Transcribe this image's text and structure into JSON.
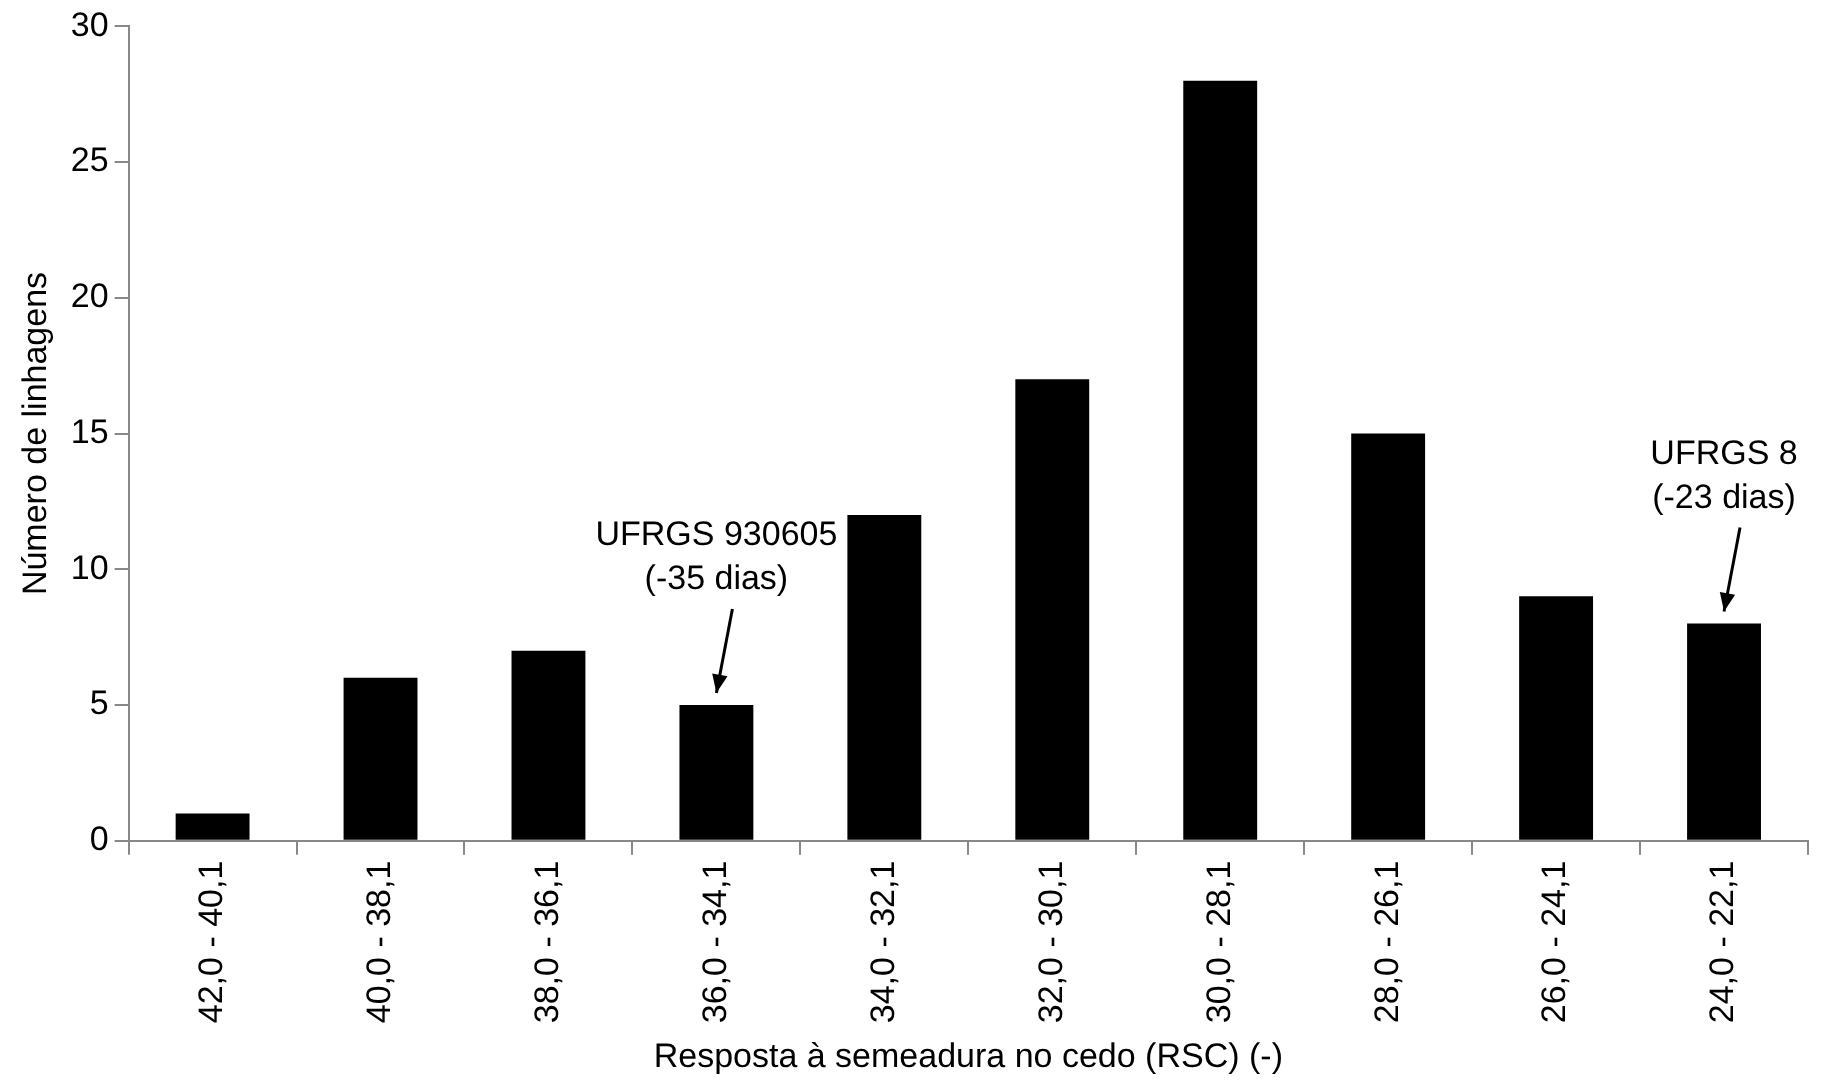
{
  "chart_data": {
    "type": "bar",
    "xlabel": "Resposta à semeadura no cedo (RSC) (-)",
    "ylabel": "Número de linhagens",
    "categories": [
      "42,0 - 40,1",
      "40,0 - 38,1",
      "38,0 - 36,1",
      "36,0 - 34,1",
      "34,0 - 32,1",
      "32,0 - 30,1",
      "30,0 - 28,1",
      "28,0 - 26,1",
      "26,0 - 24,1",
      "24,0 - 22,1"
    ],
    "values": [
      1,
      6,
      7,
      5,
      12,
      17,
      28,
      15,
      9,
      8
    ],
    "color": "#000000",
    "ylim": [
      0,
      30
    ],
    "yticks": [
      0,
      5,
      10,
      15,
      20,
      25,
      30
    ],
    "grid": false,
    "legend": false,
    "annotations": [
      {
        "text": "UFRGS 930605\n(-35 dias)",
        "x": "36,0 - 34,1",
        "y": 5
      },
      {
        "text": "UFRGS 8\n(-23 dias)",
        "x": "24,0 - 22,1",
        "y": 8
      }
    ]
  }
}
